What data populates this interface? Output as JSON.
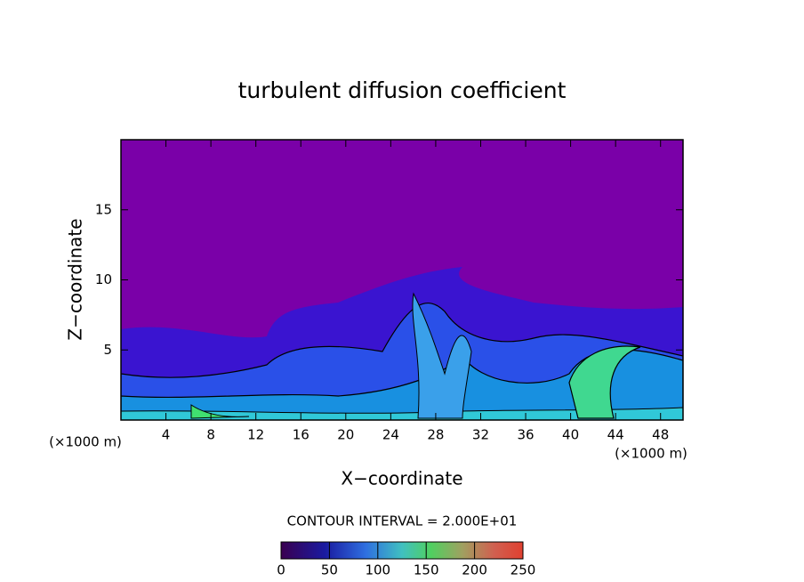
{
  "chart_data": {
    "type": "contour",
    "title": "turbulent diffusion coefficient",
    "x_label": "X−coordinate",
    "y_label": "Z−coordinate",
    "x_unit_label": "(×1000 m)",
    "y_unit_label": "(×1000 m)",
    "xlim": [
      0,
      50
    ],
    "xticks": [
      4,
      8,
      12,
      16,
      20,
      24,
      28,
      32,
      36,
      40,
      44,
      48
    ],
    "ylim": [
      0,
      20
    ],
    "yticks": [
      5,
      10,
      15
    ],
    "contour_interval_label": "CONTOUR INTERVAL = 2.000E+01",
    "colorbar": {
      "lim": [
        0,
        250
      ],
      "ticks": [
        0,
        50,
        100,
        150,
        200,
        250
      ]
    }
  }
}
